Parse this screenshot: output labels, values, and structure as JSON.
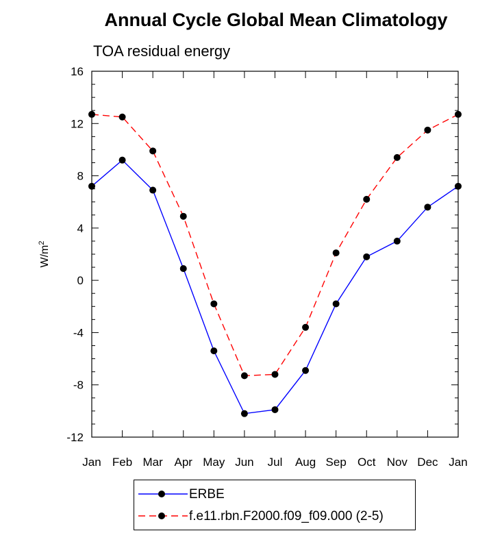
{
  "chart_data": {
    "type": "line",
    "title": "Annual Cycle Global Mean Climatology",
    "subtitle": "TOA residual energy",
    "ylabel": "W/m",
    "ylabel_superscript": "2",
    "xlabel": "",
    "categories": [
      "Jan",
      "Feb",
      "Mar",
      "Apr",
      "May",
      "Jun",
      "Jul",
      "Aug",
      "Sep",
      "Oct",
      "Nov",
      "Dec",
      "Jan"
    ],
    "ylim": [
      -12,
      16
    ],
    "yticks": [
      "16",
      "12",
      "8",
      "4",
      "0",
      "-4",
      "-8",
      "-12"
    ],
    "ytick_values": [
      16,
      12,
      8,
      4,
      0,
      -4,
      -8,
      -12
    ],
    "legend_position": "bottom-center",
    "series": [
      {
        "name": "ERBE",
        "color": "#0000ff",
        "dash": "solid",
        "marker": "filled-circle",
        "values": [
          7.2,
          9.2,
          6.9,
          0.9,
          -5.4,
          -10.2,
          -9.9,
          -6.9,
          -1.8,
          1.8,
          3.0,
          5.6,
          7.2
        ]
      },
      {
        "name": "f.e11.rbn.F2000.f09_f09.000 (2-5)",
        "color": "#ff0000",
        "dash": "dashed",
        "marker": "filled-circle",
        "values": [
          12.7,
          12.5,
          9.9,
          4.9,
          -1.8,
          -7.3,
          -7.2,
          -3.6,
          2.1,
          6.2,
          9.4,
          11.5,
          12.7
        ]
      }
    ]
  }
}
